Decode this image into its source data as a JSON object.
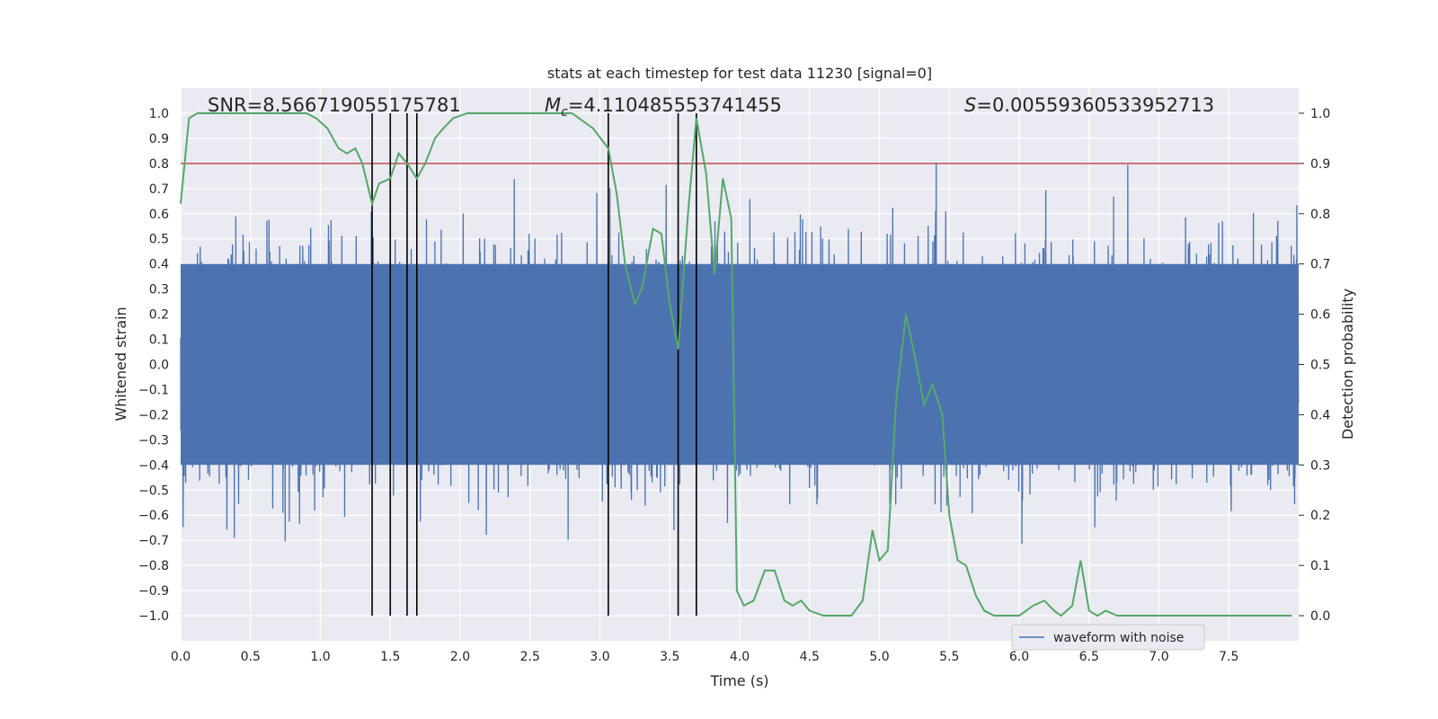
{
  "chart_data": {
    "type": "line",
    "title": "stats at each timestep for test data 11230 [signal=0]",
    "xlabel": "Time (s)",
    "ylabel_left": "Whitened strain",
    "ylabel_right": "Detection probability",
    "xlim": [
      0,
      8
    ],
    "ylim_left": [
      -1.1,
      1.1
    ],
    "ylim_right": [
      -0.05,
      1.05
    ],
    "x_ticks": [
      "0.0",
      "0.5",
      "1.0",
      "1.5",
      "2.0",
      "2.5",
      "3.0",
      "3.5",
      "4.0",
      "4.5",
      "5.0",
      "5.5",
      "6.0",
      "6.5",
      "7.0",
      "7.5"
    ],
    "y_left_ticks": [
      "1.0",
      "0.9",
      "0.8",
      "0.7",
      "0.6",
      "0.5",
      "0.4",
      "0.3",
      "0.2",
      "0.1",
      "0.0",
      "−0.1",
      "−0.2",
      "−0.3",
      "−0.4",
      "−0.5",
      "−0.6",
      "−0.7",
      "−0.8",
      "−0.9",
      "−1.0"
    ],
    "y_right_ticks": [
      "1.0",
      "0.9",
      "0.8",
      "0.7",
      "0.6",
      "0.5",
      "0.4",
      "0.3",
      "0.2",
      "0.1",
      "0.0"
    ],
    "grid": true,
    "legend_position": "lower-right",
    "annotations": {
      "snr": "SNR=8.566719055175781",
      "mc": "=4.110485553741455",
      "mc_symbol": "M",
      "mc_subscript": "c",
      "s": "=0.00559360533952713",
      "s_symbol": "S"
    },
    "threshold": {
      "value": 0.9,
      "axis": "right",
      "color": "#c44e52"
    },
    "vertical_markers_x": [
      1.37,
      1.5,
      1.62,
      1.69,
      3.06,
      3.56,
      3.69
    ],
    "series": [
      {
        "name": "waveform with noise",
        "color": "#4c72b0",
        "axis": "left",
        "style": "dense-noise",
        "envelope_abs": 0.4,
        "max_abs": 1.0
      },
      {
        "color": "#55a868",
        "axis": "right",
        "x": [
          0.0,
          0.06,
          0.12,
          0.2,
          0.3,
          0.4,
          0.5,
          0.6,
          0.7,
          0.8,
          0.9,
          0.97,
          1.05,
          1.13,
          1.19,
          1.25,
          1.3,
          1.37,
          1.42,
          1.5,
          1.56,
          1.62,
          1.69,
          1.75,
          1.82,
          1.88,
          1.95,
          2.05,
          2.2,
          2.4,
          2.6,
          2.8,
          2.95,
          3.06,
          3.12,
          3.18,
          3.25,
          3.3,
          3.38,
          3.44,
          3.5,
          3.56,
          3.63,
          3.69,
          3.76,
          3.82,
          3.88,
          3.94,
          3.98,
          4.03,
          4.1,
          4.18,
          4.25,
          4.32,
          4.38,
          4.44,
          4.5,
          4.6,
          4.7,
          4.8,
          4.88,
          4.95,
          5.0,
          5.06,
          5.12,
          5.19,
          5.25,
          5.32,
          5.38,
          5.45,
          5.5,
          5.56,
          5.62,
          5.69,
          5.75,
          5.82,
          5.9,
          6.0,
          6.1,
          6.18,
          6.25,
          6.3,
          6.38,
          6.44,
          6.5,
          6.56,
          6.62,
          6.7,
          6.8,
          7.0,
          7.2,
          7.3,
          7.5,
          7.7,
          7.85,
          7.95
        ],
        "values": [
          0.82,
          0.99,
          1.0,
          1.0,
          1.0,
          1.0,
          1.0,
          1.0,
          1.0,
          1.0,
          1.0,
          0.99,
          0.97,
          0.93,
          0.92,
          0.93,
          0.9,
          0.82,
          0.86,
          0.87,
          0.92,
          0.9,
          0.87,
          0.9,
          0.95,
          0.97,
          0.99,
          1.0,
          1.0,
          1.0,
          1.0,
          1.0,
          0.97,
          0.93,
          0.84,
          0.7,
          0.62,
          0.65,
          0.77,
          0.76,
          0.62,
          0.53,
          0.8,
          0.99,
          0.88,
          0.68,
          0.87,
          0.79,
          0.05,
          0.02,
          0.03,
          0.09,
          0.09,
          0.03,
          0.02,
          0.03,
          0.01,
          0.0,
          0.0,
          0.0,
          0.03,
          0.17,
          0.11,
          0.13,
          0.43,
          0.6,
          0.52,
          0.42,
          0.46,
          0.4,
          0.2,
          0.11,
          0.1,
          0.04,
          0.01,
          0.0,
          0.0,
          0.0,
          0.02,
          0.03,
          0.01,
          0.0,
          0.02,
          0.11,
          0.01,
          0.0,
          0.01,
          0.0,
          0.0,
          0.0,
          0.0,
          0.0,
          0.0,
          0.0,
          0.0,
          0.0
        ]
      }
    ]
  }
}
